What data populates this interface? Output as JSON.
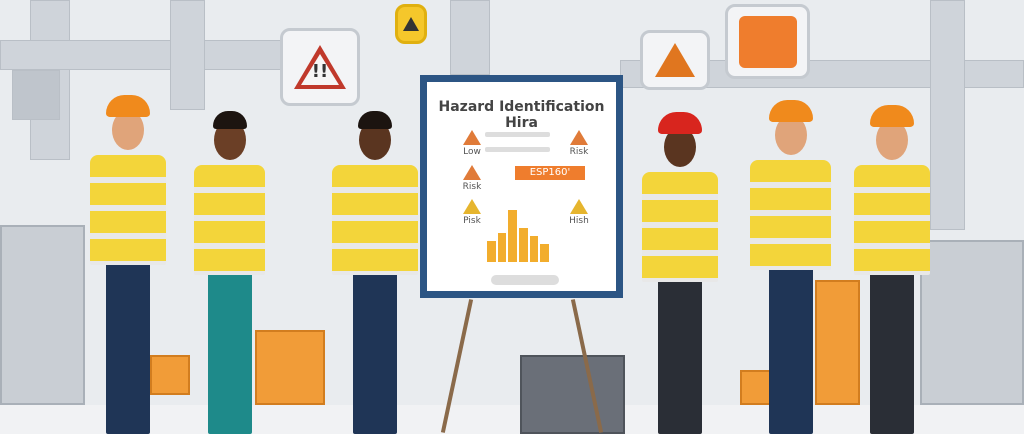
{
  "board": {
    "title": "Hazard Identification Hira",
    "labels": [
      "Low",
      "Risk",
      "Risk",
      "Pisk",
      "Hish"
    ],
    "tag": "ESP160'",
    "bars": [
      0.4,
      0.55,
      1.0,
      0.65,
      0.5,
      0.35
    ]
  },
  "signs": {
    "warning_text": "!!"
  },
  "colors": {
    "board_frame": "#2c5584",
    "vest": "#f3d53a",
    "hardhat_orange": "#f08a1c",
    "hardhat_red": "#d8251e",
    "accent_orange": "#ef7d2d"
  }
}
